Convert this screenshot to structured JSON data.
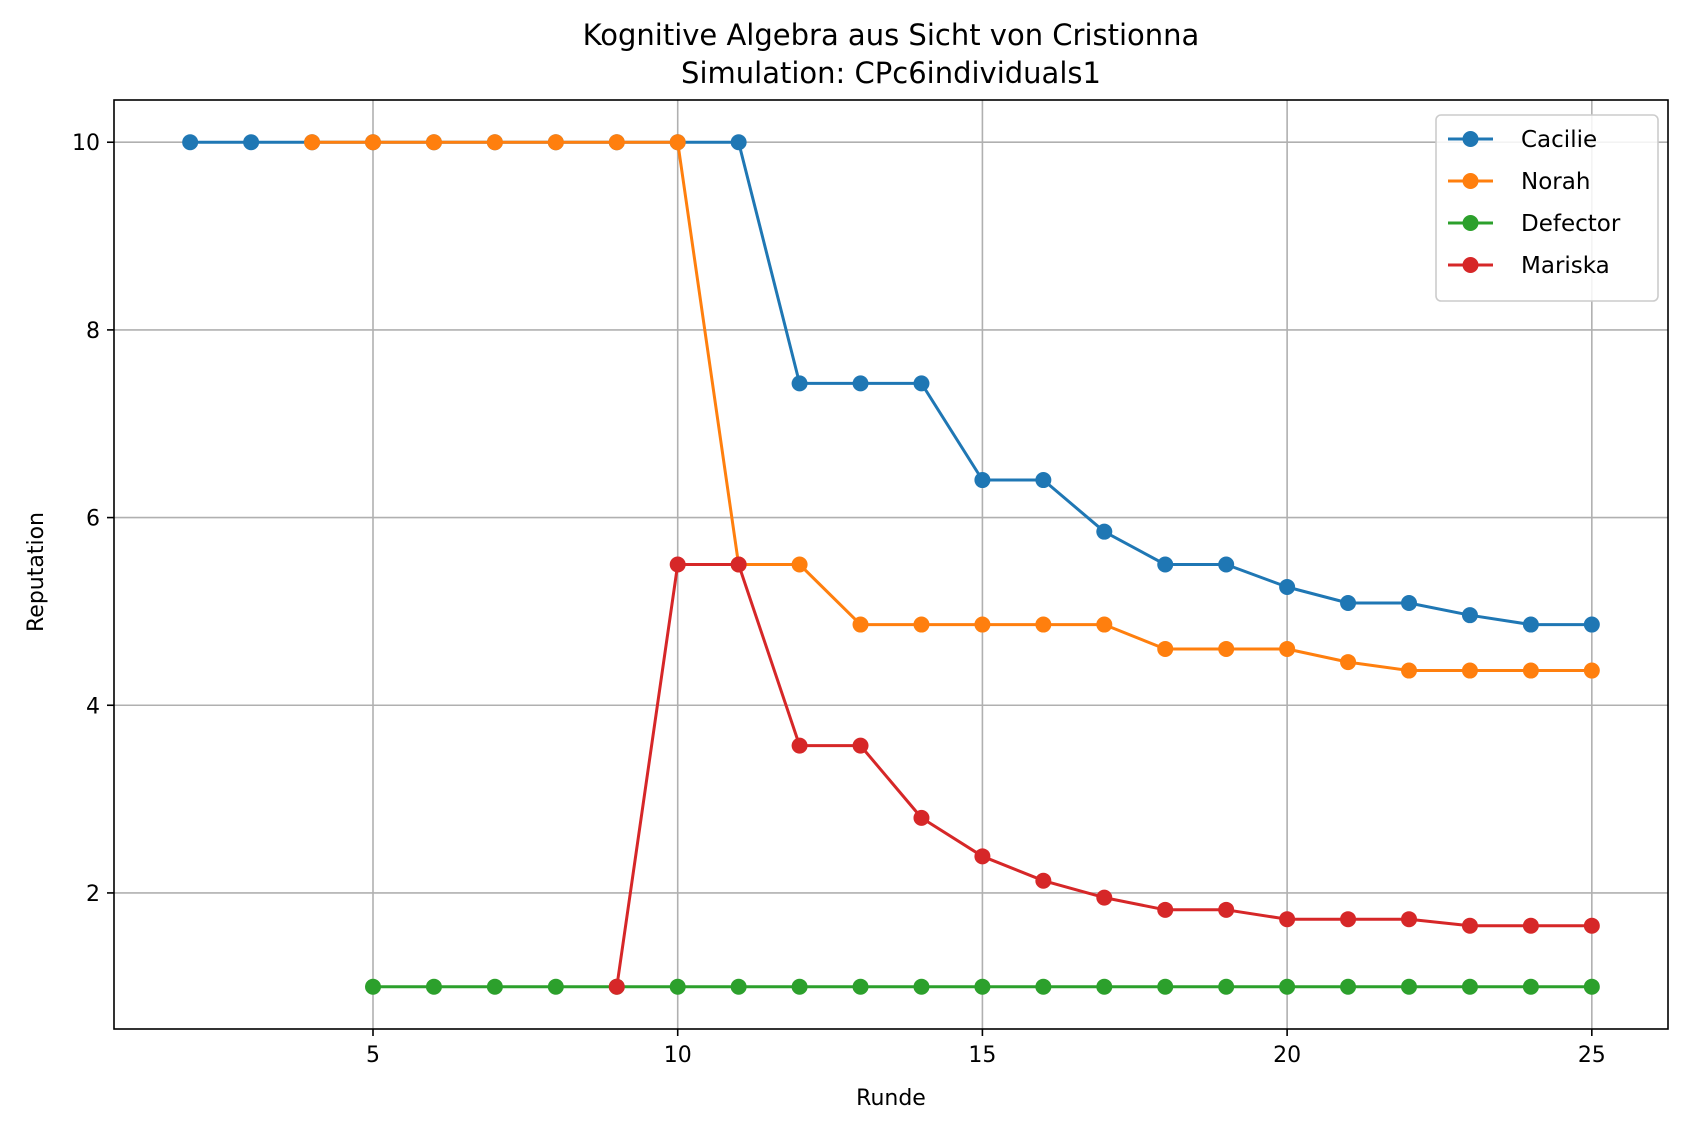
{
  "chart_data": {
    "type": "line",
    "title": "Kognitive Algebra aus Sicht von Cristionna",
    "subtitle": "Simulation: CPc6individuals1",
    "xlabel": "Runde",
    "ylabel": "Reputation",
    "xlim": [
      0.75,
      26.25
    ],
    "ylim": [
      0.55,
      10.45
    ],
    "xticks": [
      5,
      10,
      15,
      20,
      25
    ],
    "yticks": [
      2,
      4,
      6,
      8,
      10
    ],
    "grid": true,
    "legend_position": "top-right",
    "series": [
      {
        "name": "Cacilie",
        "color": "#1f77b4",
        "x": [
          2,
          3,
          4,
          5,
          6,
          7,
          8,
          9,
          10,
          11,
          12,
          13,
          14,
          15,
          16,
          17,
          18,
          19,
          20,
          21,
          22,
          23,
          24,
          25
        ],
        "y": [
          10,
          10,
          10,
          10,
          10,
          10,
          10,
          10,
          10,
          10,
          7.43,
          7.43,
          7.43,
          6.4,
          6.4,
          5.85,
          5.5,
          5.5,
          5.26,
          5.09,
          5.09,
          4.96,
          4.86,
          4.86
        ]
      },
      {
        "name": "Norah",
        "color": "#ff7f0e",
        "x": [
          4,
          5,
          6,
          7,
          8,
          9,
          10,
          11,
          12,
          13,
          14,
          15,
          16,
          17,
          18,
          19,
          20,
          21,
          22,
          23,
          24,
          25
        ],
        "y": [
          10,
          10,
          10,
          10,
          10,
          10,
          10,
          5.5,
          5.5,
          4.86,
          4.86,
          4.86,
          4.86,
          4.86,
          4.6,
          4.6,
          4.6,
          4.46,
          4.37,
          4.37,
          4.37,
          4.37
        ]
      },
      {
        "name": "Defector",
        "color": "#2ca02c",
        "x": [
          5,
          6,
          7,
          8,
          9,
          10,
          11,
          12,
          13,
          14,
          15,
          16,
          17,
          18,
          19,
          20,
          21,
          22,
          23,
          24,
          25
        ],
        "y": [
          1,
          1,
          1,
          1,
          1,
          1,
          1,
          1,
          1,
          1,
          1,
          1,
          1,
          1,
          1,
          1,
          1,
          1,
          1,
          1,
          1
        ]
      },
      {
        "name": "Mariska",
        "color": "#d62728",
        "x": [
          9,
          10,
          11,
          12,
          13,
          14,
          15,
          16,
          17,
          18,
          19,
          20,
          21,
          22,
          23,
          24,
          25
        ],
        "y": [
          1,
          5.5,
          5.5,
          3.57,
          3.57,
          2.8,
          2.39,
          2.13,
          1.95,
          1.82,
          1.82,
          1.72,
          1.72,
          1.72,
          1.65,
          1.65,
          1.65
        ]
      }
    ]
  }
}
